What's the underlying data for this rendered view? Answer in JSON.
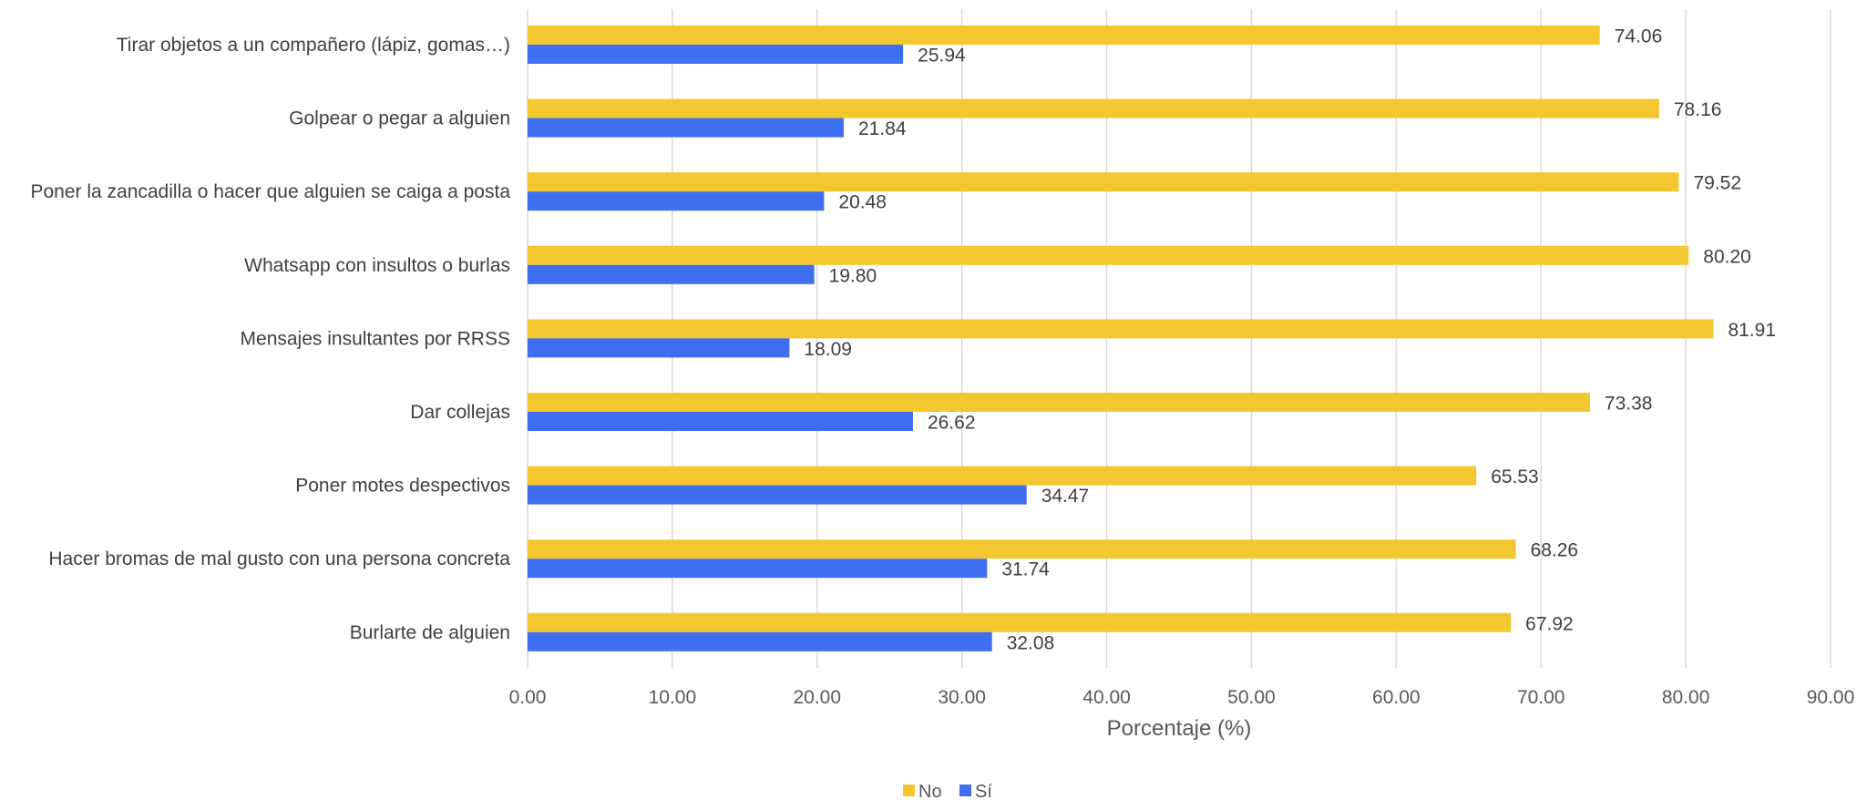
{
  "chart_data": {
    "type": "bar",
    "orientation": "horizontal",
    "categories": [
      "Tirar objetos a un compañero (lápiz, gomas…)",
      "Golpear o pegar a alguien",
      "Poner la zancadilla o hacer que alguien se caiga a posta",
      "Whatsapp con insultos o burlas",
      "Mensajes insultantes por RRSS",
      "Dar collejas",
      "Poner motes despectivos",
      "Hacer bromas de mal gusto con una persona concreta",
      "Burlarte de alguien"
    ],
    "series": [
      {
        "name": "No",
        "color": "#F2C730",
        "values": [
          74.06,
          78.16,
          79.52,
          80.2,
          81.91,
          73.38,
          65.53,
          68.26,
          67.92
        ],
        "labels": [
          "74.06",
          "78.16",
          "79.52",
          "80.20",
          "81.91",
          "73.38",
          "65.53",
          "68.26",
          "67.92"
        ]
      },
      {
        "name": "Sí",
        "color": "#3F6EF0",
        "values": [
          25.94,
          21.84,
          20.48,
          19.8,
          18.09,
          26.62,
          34.47,
          31.74,
          32.08
        ],
        "labels": [
          "25.94",
          "21.84",
          "20.48",
          "19.80",
          "18.09",
          "26.62",
          "34.47",
          "31.74",
          "32.08"
        ]
      }
    ],
    "xlim": [
      0,
      90
    ],
    "x_ticks": [
      "0.00",
      "10.00",
      "20.00",
      "30.00",
      "40.00",
      "50.00",
      "60.00",
      "70.00",
      "80.00",
      "90.00"
    ],
    "xlabel": "Porcentaje (%)",
    "ylabel": "",
    "title": "",
    "grid": "vertical",
    "gridline_color": "#D9D9D9",
    "legend_position": "bottom"
  }
}
